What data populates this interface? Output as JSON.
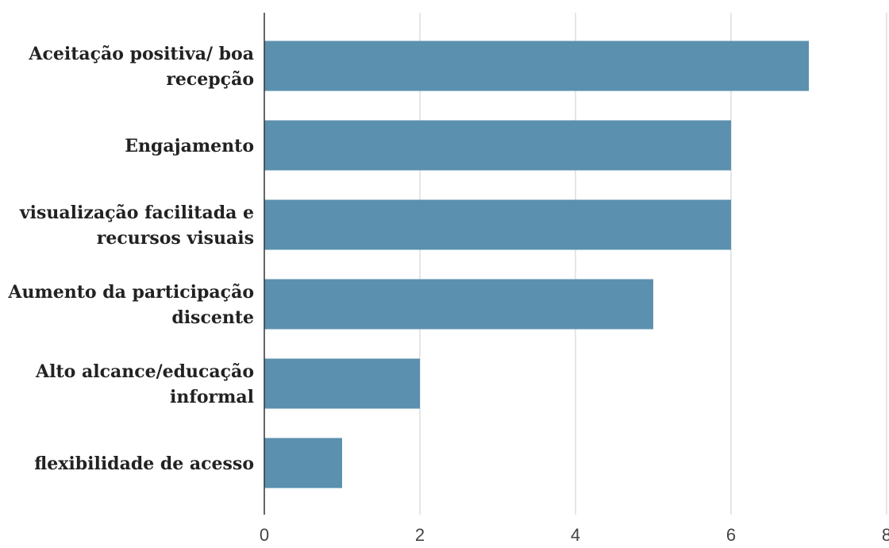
{
  "chart_data": {
    "type": "bar",
    "orientation": "horizontal",
    "title": "",
    "xlabel": "",
    "ylabel": "",
    "categories": [
      [
        "Aceitação positiva/ boa",
        "recepção"
      ],
      [
        "Engajamento"
      ],
      [
        "visualização facilitada e",
        "recursos visuais"
      ],
      [
        "Aumento da participação",
        "discente"
      ],
      [
        "Alto alcance/educação",
        "informal"
      ],
      [
        "flexibilidade de acesso"
      ]
    ],
    "values": [
      7,
      6,
      6,
      5,
      2,
      1
    ],
    "xlim": [
      0,
      8
    ],
    "x_ticks": [
      "0",
      "2",
      "4",
      "6",
      "8"
    ],
    "grid": "vertical",
    "legend": "none",
    "colors": {
      "bar": "#5b90ae",
      "grid": "#cccccc",
      "axis": "#333333"
    }
  }
}
